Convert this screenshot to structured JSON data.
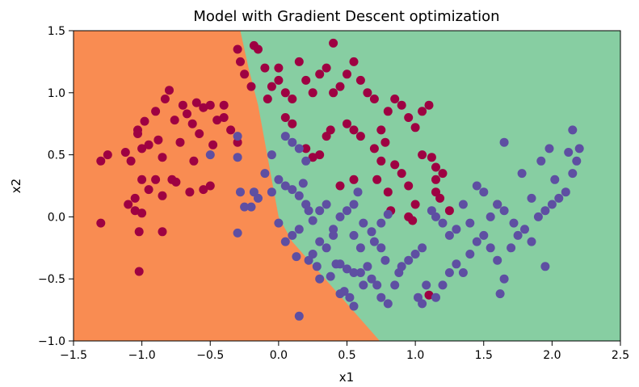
{
  "chart_data": {
    "type": "scatter",
    "title": "Model with Gradient Descent optimization",
    "xlabel": "x1",
    "ylabel": "x2",
    "xlim": [
      -1.5,
      2.5
    ],
    "ylim": [
      -1.0,
      1.5
    ],
    "x_ticks": [
      -1.5,
      -1.0,
      -0.5,
      0.0,
      0.5,
      1.0,
      1.5,
      2.0,
      2.5
    ],
    "x_tick_labels": [
      "−1.5",
      "−1.0",
      "−0.5",
      "0.0",
      "0.5",
      "1.0",
      "1.5",
      "2.0",
      "2.5"
    ],
    "y_ticks": [
      -1.0,
      -0.5,
      0.0,
      0.5,
      1.0,
      1.5
    ],
    "y_tick_labels": [
      "−1.0",
      "−0.5",
      "0.0",
      "0.5",
      "1.0",
      "1.5"
    ],
    "grid": false,
    "legend": "none",
    "colors": {
      "region_class0": "#f98c52",
      "region_class1": "#87ceA2",
      "points_class0": "#9e0142",
      "points_class1": "#5e4fa2"
    },
    "decision_boundary": [
      [
        -0.28,
        1.5
      ],
      [
        -0.22,
        1.2
      ],
      [
        -0.15,
        0.9
      ],
      [
        -0.1,
        0.6
      ],
      [
        -0.05,
        0.3
      ],
      [
        0.0,
        0.0
      ],
      [
        0.1,
        -0.2
      ],
      [
        0.3,
        -0.45
      ],
      [
        0.5,
        -0.7
      ],
      [
        0.74,
        -1.0
      ]
    ],
    "series": [
      {
        "class": 0,
        "points": [
          [
            -1.3,
            0.45
          ],
          [
            -1.25,
            0.5
          ],
          [
            -1.12,
            0.52
          ],
          [
            -1.08,
            0.45
          ],
          [
            -1.03,
            0.7
          ],
          [
            -1.03,
            0.67
          ],
          [
            -1.0,
            0.55
          ],
          [
            -0.98,
            0.77
          ],
          [
            -0.95,
            0.58
          ],
          [
            -0.9,
            0.85
          ],
          [
            -0.88,
            0.62
          ],
          [
            -0.85,
            0.48
          ],
          [
            -0.83,
            0.95
          ],
          [
            -0.8,
            1.02
          ],
          [
            -0.76,
            0.78
          ],
          [
            -0.72,
            0.6
          ],
          [
            -0.7,
            0.9
          ],
          [
            -0.67,
            0.83
          ],
          [
            -0.63,
            0.75
          ],
          [
            -0.6,
            0.92
          ],
          [
            -0.58,
            0.67
          ],
          [
            -0.55,
            0.88
          ],
          [
            -0.5,
            0.9
          ],
          [
            -0.45,
            0.78
          ],
          [
            -0.4,
            0.8
          ],
          [
            -0.48,
            0.58
          ],
          [
            -0.62,
            0.45
          ],
          [
            -0.78,
            0.3
          ],
          [
            -0.9,
            0.3
          ],
          [
            -1.0,
            0.3
          ],
          [
            -1.05,
            0.15
          ],
          [
            -0.95,
            0.22
          ],
          [
            -0.85,
            0.17
          ],
          [
            -0.75,
            0.28
          ],
          [
            -0.65,
            0.2
          ],
          [
            -0.55,
            0.22
          ],
          [
            -0.5,
            0.25
          ],
          [
            -0.35,
            0.7
          ],
          [
            -0.3,
            0.6
          ],
          [
            -1.1,
            0.1
          ],
          [
            -1.05,
            0.05
          ],
          [
            -1.0,
            0.03
          ],
          [
            -1.3,
            -0.05
          ],
          [
            -1.02,
            -0.12
          ],
          [
            -0.85,
            -0.12
          ],
          [
            -1.02,
            -0.44
          ],
          [
            -0.4,
            0.9
          ],
          [
            -0.3,
            1.35
          ],
          [
            -0.28,
            1.25
          ],
          [
            -0.25,
            1.15
          ],
          [
            -0.2,
            1.05
          ],
          [
            -0.18,
            1.38
          ],
          [
            -0.15,
            1.35
          ],
          [
            -0.1,
            1.2
          ],
          [
            -0.08,
            0.95
          ],
          [
            -0.05,
            1.05
          ],
          [
            0.0,
            1.2
          ],
          [
            0.0,
            1.1
          ],
          [
            0.05,
            1.0
          ],
          [
            0.1,
            0.95
          ],
          [
            0.15,
            1.25
          ],
          [
            0.2,
            1.1
          ],
          [
            0.25,
            1.0
          ],
          [
            0.3,
            1.15
          ],
          [
            0.35,
            1.2
          ],
          [
            0.4,
            1.0
          ],
          [
            0.45,
            1.05
          ],
          [
            0.5,
            1.15
          ],
          [
            0.55,
            1.25
          ],
          [
            0.6,
            1.1
          ],
          [
            0.65,
            1.0
          ],
          [
            0.7,
            0.95
          ],
          [
            0.75,
            0.7
          ],
          [
            0.8,
            0.85
          ],
          [
            0.85,
            0.95
          ],
          [
            0.9,
            0.9
          ],
          [
            0.95,
            0.8
          ],
          [
            1.0,
            0.72
          ],
          [
            1.05,
            0.85
          ],
          [
            1.1,
            0.9
          ],
          [
            1.12,
            0.48
          ],
          [
            1.15,
            0.3
          ],
          [
            1.18,
            0.15
          ],
          [
            1.2,
            0.35
          ],
          [
            1.15,
            0.4
          ],
          [
            0.5,
            0.75
          ],
          [
            0.55,
            0.7
          ],
          [
            0.6,
            0.65
          ],
          [
            0.7,
            0.55
          ],
          [
            0.75,
            0.45
          ],
          [
            0.72,
            0.3
          ],
          [
            0.78,
            0.6
          ],
          [
            0.85,
            0.42
          ],
          [
            0.9,
            0.35
          ],
          [
            0.95,
            0.25
          ],
          [
            0.8,
            0.2
          ],
          [
            0.82,
            0.05
          ],
          [
            0.95,
            0.0
          ],
          [
            0.98,
            -0.03
          ],
          [
            0.35,
            0.65
          ],
          [
            0.38,
            0.7
          ],
          [
            0.3,
            0.5
          ],
          [
            0.25,
            0.48
          ],
          [
            0.2,
            0.55
          ],
          [
            0.1,
            0.75
          ],
          [
            0.05,
            0.8
          ],
          [
            0.45,
            0.25
          ],
          [
            0.55,
            0.3
          ],
          [
            0.4,
            1.4
          ],
          [
            1.25,
            0.05
          ],
          [
            1.6,
            0.1
          ],
          [
            1.1,
            -0.63
          ],
          [
            1.05,
            0.5
          ],
          [
            1.15,
            0.2
          ],
          [
            1.0,
            0.1
          ]
        ]
      },
      {
        "class": 1,
        "points": [
          [
            -0.5,
            0.5
          ],
          [
            -0.3,
            0.65
          ],
          [
            -0.3,
            0.48
          ],
          [
            -0.28,
            0.2
          ],
          [
            -0.25,
            0.08
          ],
          [
            -0.3,
            -0.13
          ],
          [
            -0.2,
            0.08
          ],
          [
            -0.18,
            0.2
          ],
          [
            -0.15,
            0.15
          ],
          [
            -0.1,
            0.35
          ],
          [
            -0.05,
            0.5
          ],
          [
            -0.05,
            0.2
          ],
          [
            0.0,
            0.3
          ],
          [
            0.05,
            0.65
          ],
          [
            0.1,
            0.6
          ],
          [
            0.15,
            0.55
          ],
          [
            0.2,
            0.45
          ],
          [
            0.05,
            0.25
          ],
          [
            0.1,
            0.22
          ],
          [
            0.15,
            0.17
          ],
          [
            0.18,
            0.27
          ],
          [
            0.2,
            0.1
          ],
          [
            0.22,
            0.05
          ],
          [
            0.25,
            -0.03
          ],
          [
            0.3,
            0.05
          ],
          [
            0.15,
            -0.1
          ],
          [
            0.1,
            -0.15
          ],
          [
            0.05,
            -0.2
          ],
          [
            0.0,
            -0.05
          ],
          [
            0.13,
            -0.32
          ],
          [
            0.25,
            -0.3
          ],
          [
            0.3,
            -0.2
          ],
          [
            0.35,
            -0.25
          ],
          [
            0.4,
            -0.1
          ],
          [
            0.45,
            0.0
          ],
          [
            0.5,
            0.05
          ],
          [
            0.55,
            0.1
          ],
          [
            0.58,
            0.2
          ],
          [
            0.62,
            -0.05
          ],
          [
            0.68,
            -0.12
          ],
          [
            0.7,
            -0.2
          ],
          [
            0.75,
            -0.25
          ],
          [
            0.78,
            -0.35
          ],
          [
            0.65,
            -0.4
          ],
          [
            0.6,
            -0.45
          ],
          [
            0.5,
            -0.42
          ],
          [
            0.45,
            -0.38
          ],
          [
            0.38,
            -0.48
          ],
          [
            0.28,
            -0.4
          ],
          [
            0.22,
            -0.35
          ],
          [
            0.3,
            -0.5
          ],
          [
            0.48,
            -0.6
          ],
          [
            0.52,
            -0.65
          ],
          [
            0.55,
            -0.72
          ],
          [
            0.62,
            -0.55
          ],
          [
            0.68,
            -0.5
          ],
          [
            0.72,
            -0.55
          ],
          [
            0.75,
            -0.65
          ],
          [
            0.8,
            -0.7
          ],
          [
            0.85,
            -0.55
          ],
          [
            0.88,
            -0.45
          ],
          [
            0.9,
            -0.4
          ],
          [
            0.95,
            -0.35
          ],
          [
            1.0,
            -0.3
          ],
          [
            1.05,
            -0.25
          ],
          [
            1.08,
            -0.55
          ],
          [
            1.02,
            -0.65
          ],
          [
            1.05,
            -0.7
          ],
          [
            1.15,
            -0.65
          ],
          [
            1.2,
            -0.55
          ],
          [
            1.25,
            -0.45
          ],
          [
            1.3,
            -0.38
          ],
          [
            1.35,
            -0.45
          ],
          [
            1.4,
            -0.3
          ],
          [
            1.45,
            -0.2
          ],
          [
            1.5,
            -0.15
          ],
          [
            1.55,
            -0.25
          ],
          [
            1.6,
            -0.35
          ],
          [
            1.62,
            -0.62
          ],
          [
            1.65,
            -0.5
          ],
          [
            1.7,
            -0.25
          ],
          [
            1.75,
            -0.15
          ],
          [
            1.8,
            -0.1
          ],
          [
            1.85,
            -0.2
          ],
          [
            1.9,
            0.0
          ],
          [
            1.95,
            0.05
          ],
          [
            2.0,
            0.1
          ],
          [
            2.05,
            0.15
          ],
          [
            2.1,
            0.2
          ],
          [
            2.15,
            0.35
          ],
          [
            2.18,
            0.45
          ],
          [
            2.2,
            0.55
          ],
          [
            2.15,
            0.7
          ],
          [
            2.12,
            0.52
          ],
          [
            2.02,
            0.3
          ],
          [
            1.98,
            0.55
          ],
          [
            1.92,
            0.45
          ],
          [
            1.85,
            0.15
          ],
          [
            1.78,
            0.35
          ],
          [
            1.72,
            -0.05
          ],
          [
            1.65,
            0.05
          ],
          [
            1.6,
            0.1
          ],
          [
            1.55,
            0.0
          ],
          [
            1.5,
            0.2
          ],
          [
            1.45,
            0.25
          ],
          [
            1.4,
            -0.05
          ],
          [
            1.35,
            0.1
          ],
          [
            1.3,
            -0.1
          ],
          [
            1.25,
            -0.15
          ],
          [
            1.2,
            -0.05
          ],
          [
            1.15,
            0.0
          ],
          [
            1.12,
            0.05
          ],
          [
            1.65,
            0.6
          ],
          [
            1.95,
            -0.4
          ],
          [
            0.15,
            -0.8
          ],
          [
            0.2,
            0.1
          ],
          [
            0.35,
            0.1
          ],
          [
            0.4,
            -0.15
          ],
          [
            0.55,
            -0.15
          ],
          [
            0.6,
            -0.25
          ],
          [
            0.42,
            -0.38
          ],
          [
            0.8,
            0.02
          ],
          [
            0.75,
            -0.05
          ],
          [
            0.55,
            -0.45
          ],
          [
            0.45,
            -0.62
          ]
        ]
      }
    ]
  }
}
